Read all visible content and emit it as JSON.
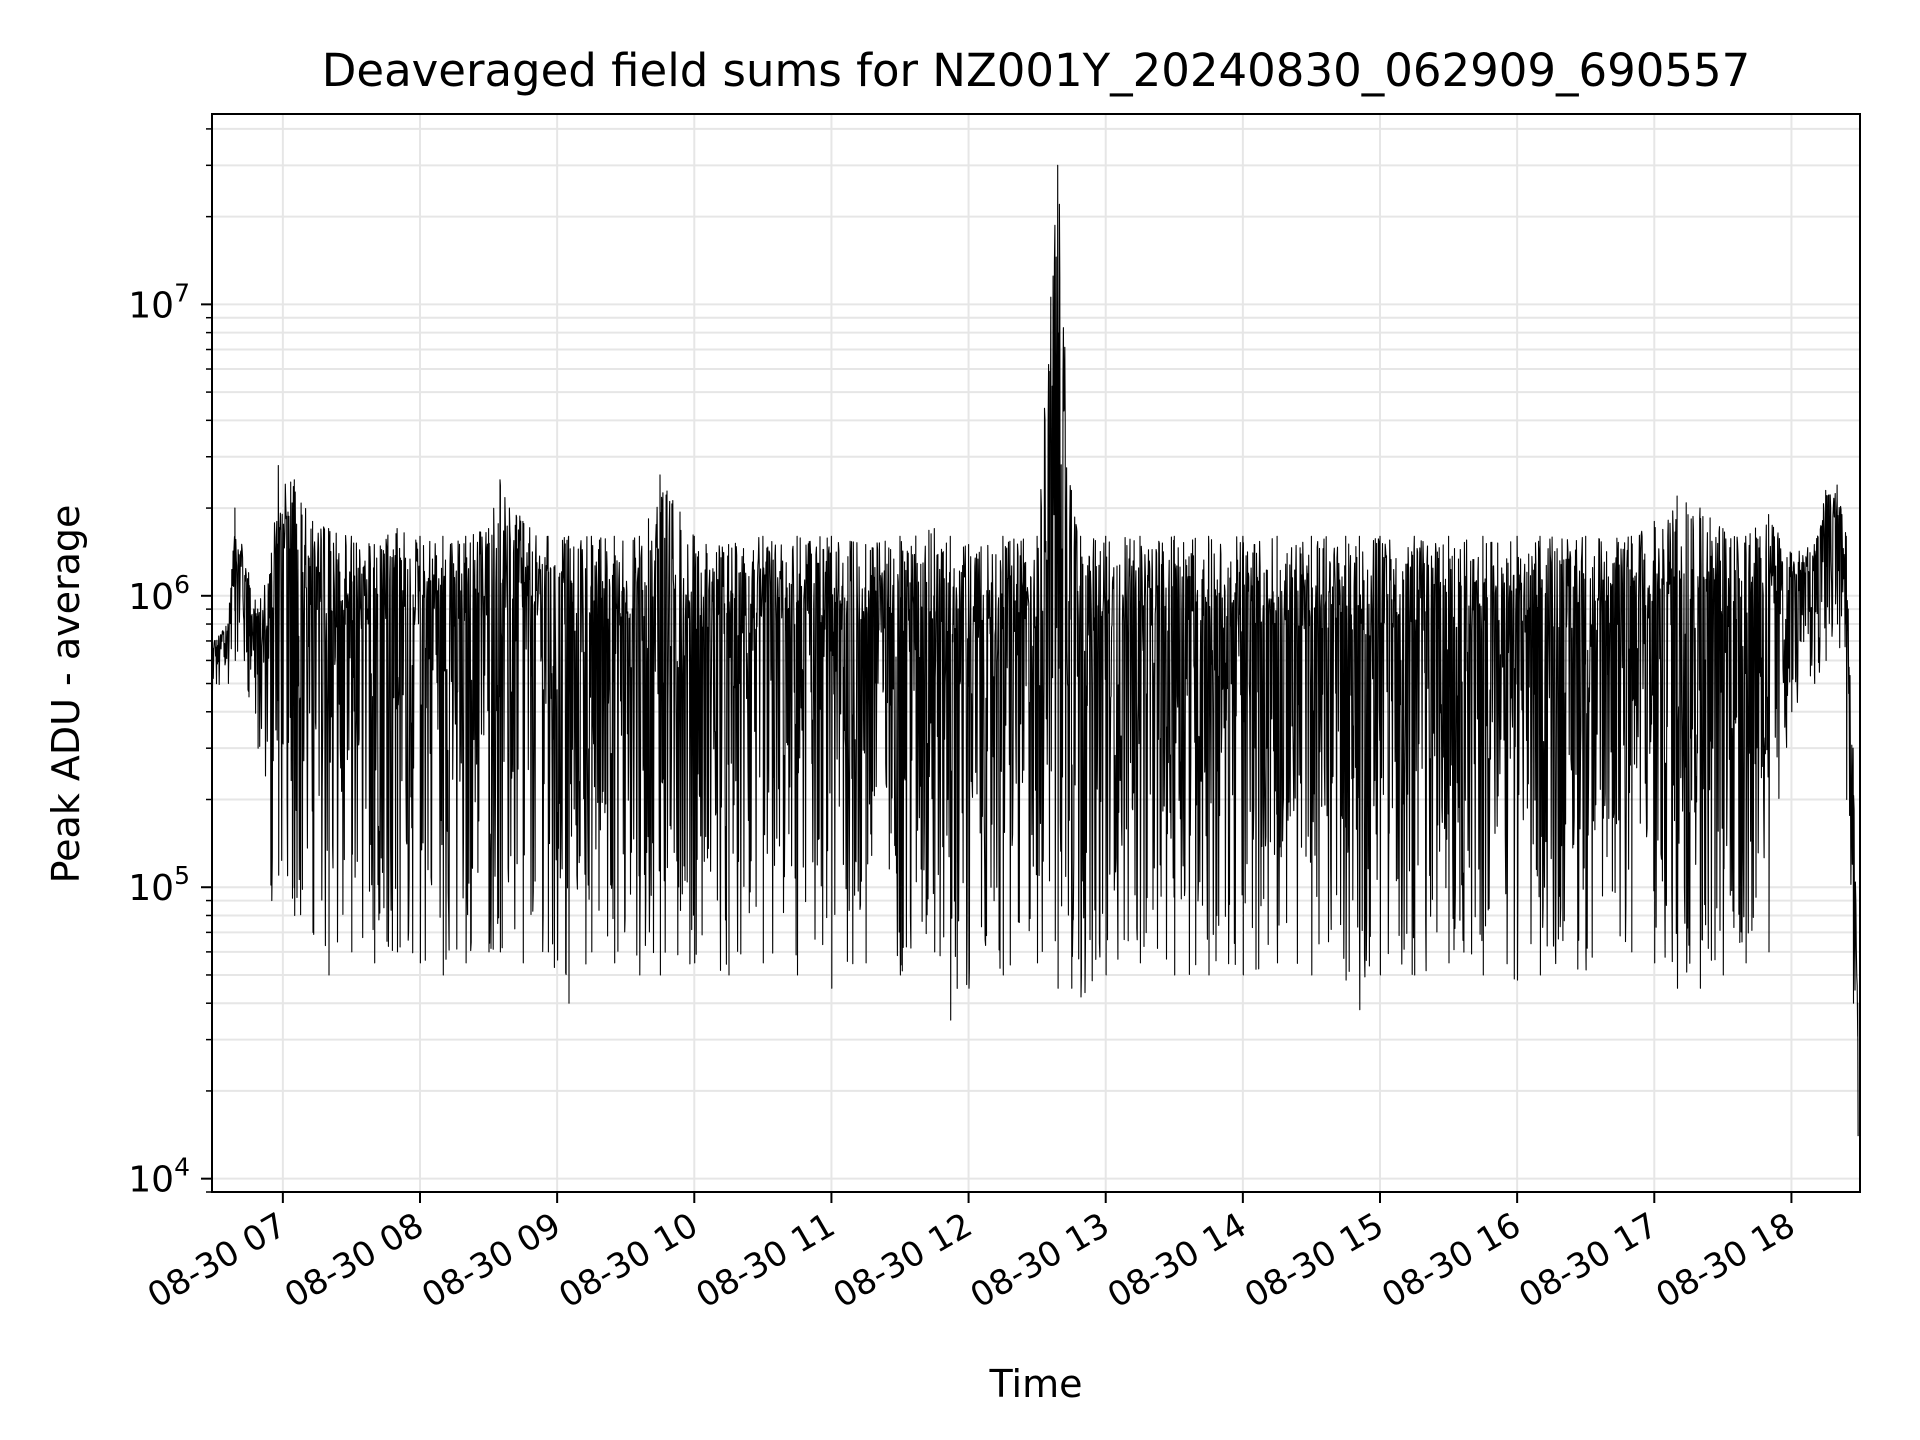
{
  "chart_data": {
    "type": "line",
    "title": "Deaveraged field sums for NZ001Y_20240830_062909_690557",
    "xlabel": "Time",
    "ylabel": "Peak ADU - average",
    "yscale": "log",
    "ylim": [
      9000,
      45000000
    ],
    "y_ticks": [
      {
        "value": 10000,
        "base": "10",
        "exp": "4"
      },
      {
        "value": 100000,
        "base": "10",
        "exp": "5"
      },
      {
        "value": 1000000,
        "base": "10",
        "exp": "6"
      },
      {
        "value": 10000000,
        "base": "10",
        "exp": "7"
      }
    ],
    "xlim": [
      "2024-08-30T06:29",
      "2024-08-30T18:30"
    ],
    "x_ticks": [
      {
        "value": "2024-08-30T07:00",
        "label": "08-30 07"
      },
      {
        "value": "2024-08-30T08:00",
        "label": "08-30 08"
      },
      {
        "value": "2024-08-30T09:00",
        "label": "08-30 09"
      },
      {
        "value": "2024-08-30T10:00",
        "label": "08-30 10"
      },
      {
        "value": "2024-08-30T11:00",
        "label": "08-30 11"
      },
      {
        "value": "2024-08-30T12:00",
        "label": "08-30 12"
      },
      {
        "value": "2024-08-30T13:00",
        "label": "08-30 13"
      },
      {
        "value": "2024-08-30T14:00",
        "label": "08-30 14"
      },
      {
        "value": "2024-08-30T15:00",
        "label": "08-30 15"
      },
      {
        "value": "2024-08-30T16:00",
        "label": "08-30 16"
      },
      {
        "value": "2024-08-30T17:00",
        "label": "08-30 17"
      },
      {
        "value": "2024-08-30T18:00",
        "label": "08-30 18"
      }
    ],
    "grid": true,
    "line_color": "#000000",
    "grid_color": "#e6e6e6",
    "series": [
      {
        "x": [
          "2024-08-30T06:29",
          "2024-08-30T06:36",
          "2024-08-30T06:39",
          "2024-08-30T06:45",
          "2024-08-30T06:49",
          "2024-08-30T06:55",
          "2024-08-30T06:58",
          "2024-08-30T07:05",
          "2024-08-30T07:13",
          "2024-08-30T07:20",
          "2024-08-30T07:30",
          "2024-08-30T07:40",
          "2024-08-30T07:50",
          "2024-08-30T08:00",
          "2024-08-30T08:10",
          "2024-08-30T08:20",
          "2024-08-30T08:30",
          "2024-08-30T08:35",
          "2024-08-30T08:45",
          "2024-08-30T08:56",
          "2024-08-30T09:05",
          "2024-08-30T09:15",
          "2024-08-30T09:25",
          "2024-08-30T09:36",
          "2024-08-30T09:45",
          "2024-08-30T10:00",
          "2024-08-30T10:15",
          "2024-08-30T10:30",
          "2024-08-30T10:45",
          "2024-08-30T11:00",
          "2024-08-30T11:15",
          "2024-08-30T11:30",
          "2024-08-30T11:45",
          "2024-08-30T11:52",
          "2024-08-30T12:00",
          "2024-08-30T12:15",
          "2024-08-30T12:30",
          "2024-08-30T12:39",
          "2024-08-30T12:45",
          "2024-08-30T12:49",
          "2024-08-30T13:00",
          "2024-08-30T13:15",
          "2024-08-30T13:30",
          "2024-08-30T13:45",
          "2024-08-30T14:00",
          "2024-08-30T14:15",
          "2024-08-30T14:30",
          "2024-08-30T14:45",
          "2024-08-30T14:51",
          "2024-08-30T15:00",
          "2024-08-30T15:15",
          "2024-08-30T15:30",
          "2024-08-30T15:45",
          "2024-08-30T16:00",
          "2024-08-30T16:10",
          "2024-08-30T16:30",
          "2024-08-30T16:50",
          "2024-08-30T17:00",
          "2024-08-30T17:10",
          "2024-08-30T17:20",
          "2024-08-30T17:30",
          "2024-08-30T17:40",
          "2024-08-30T17:50",
          "2024-08-30T18:00",
          "2024-08-30T18:10",
          "2024-08-30T18:15",
          "2024-08-30T18:20",
          "2024-08-30T18:24",
          "2024-08-30T18:27",
          "2024-08-30T18:29"
        ],
        "y_high": [
          700000,
          800000,
          2000000,
          1200000,
          900000,
          1400000,
          2800000,
          2500000,
          1800000,
          1700000,
          1600000,
          1500000,
          1700000,
          1600000,
          1600000,
          1600000,
          1700000,
          2500000,
          1800000,
          1600000,
          1600000,
          1600000,
          1600000,
          1600000,
          2600000,
          1600000,
          1500000,
          1600000,
          1600000,
          1600000,
          1500000,
          1600000,
          1700000,
          1600000,
          1500000,
          1600000,
          1600000,
          30000000,
          2300000,
          1600000,
          1600000,
          1600000,
          1600000,
          1600000,
          1600000,
          1600000,
          1600000,
          1600000,
          1600000,
          1600000,
          1600000,
          1600000,
          1600000,
          1600000,
          1600000,
          1600000,
          1600000,
          1800000,
          2200000,
          2000000,
          1700000,
          1600000,
          1900000,
          1400000,
          1500000,
          2300000,
          2400000,
          1600000,
          300000,
          40000
        ],
        "y_low": [
          450000,
          500000,
          600000,
          450000,
          300000,
          90000,
          110000,
          80000,
          70000,
          50000,
          60000,
          55000,
          60000,
          55000,
          50000,
          55000,
          60000,
          60000,
          55000,
          60000,
          40000,
          60000,
          55000,
          50000,
          50000,
          55000,
          50000,
          55000,
          50000,
          45000,
          55000,
          50000,
          60000,
          35000,
          45000,
          50000,
          55000,
          45000,
          45000,
          42000,
          50000,
          55000,
          50000,
          50000,
          50000,
          55000,
          50000,
          48000,
          38000,
          50000,
          50000,
          55000,
          50000,
          48000,
          50000,
          52000,
          60000,
          55000,
          45000,
          45000,
          50000,
          55000,
          60000,
          400000,
          500000,
          600000,
          800000,
          200000,
          40000,
          14000
        ]
      }
    ]
  }
}
